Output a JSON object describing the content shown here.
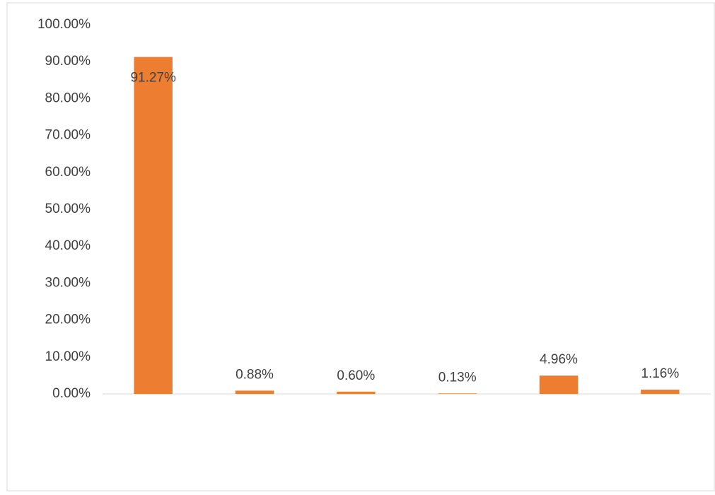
{
  "chart_data": {
    "type": "bar",
    "categories": [
      null,
      null,
      null,
      null,
      null,
      null
    ],
    "values": [
      91.27,
      0.88,
      0.6,
      0.13,
      4.96,
      1.16
    ],
    "value_labels": [
      "91.27%",
      "0.88%",
      "0.60%",
      "0.13%",
      "4.96%",
      "1.16%"
    ],
    "color": "#ed7d31",
    "ylim": [
      0,
      100
    ],
    "yticks": [
      {
        "value": 0,
        "label": "0.00%"
      },
      {
        "value": 10,
        "label": "10.00%"
      },
      {
        "value": 20,
        "label": "20.00%"
      },
      {
        "value": 30,
        "label": "30.00%"
      },
      {
        "value": 40,
        "label": "40.00%"
      },
      {
        "value": 50,
        "label": "50.00%"
      },
      {
        "value": 60,
        "label": "60.00%"
      },
      {
        "value": 70,
        "label": "70.00%"
      },
      {
        "value": 80,
        "label": "80.00%"
      },
      {
        "value": 90,
        "label": "90.00%"
      },
      {
        "value": 100,
        "label": "100.00%"
      }
    ],
    "grid": false
  }
}
